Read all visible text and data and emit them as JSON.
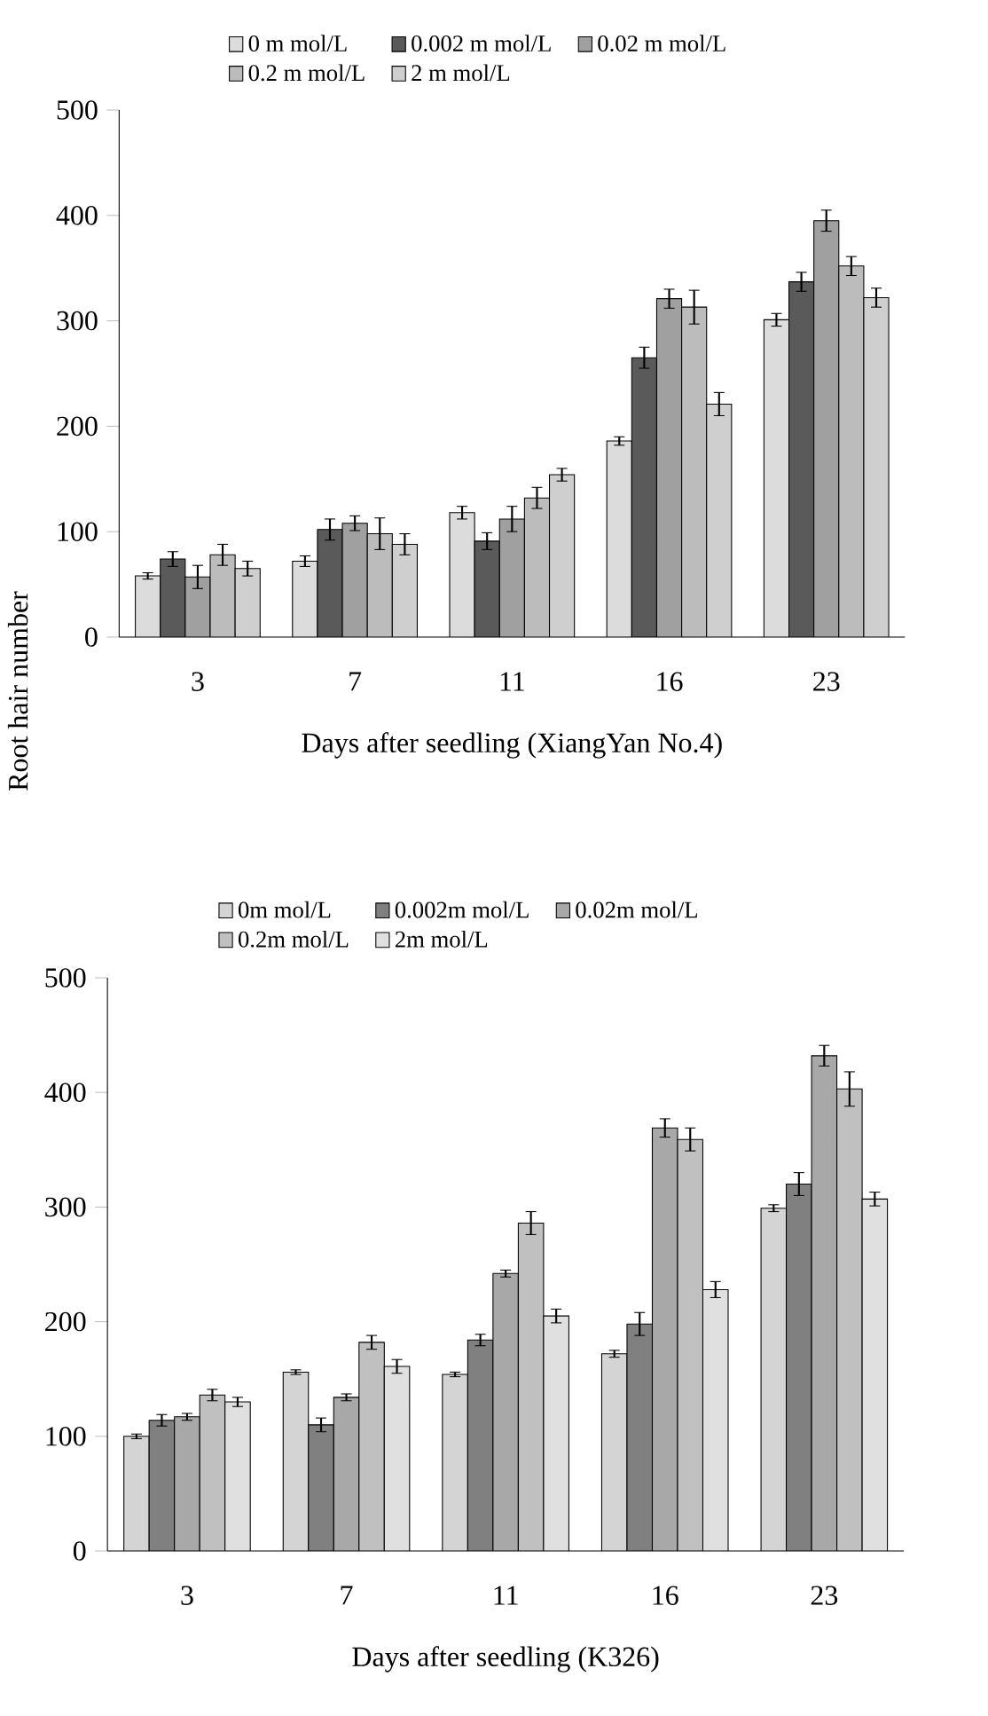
{
  "chart_data": [
    {
      "type": "bar",
      "xlabel": "Days after seedling (XiangYan No.4)",
      "categories": [
        "3",
        "7",
        "11",
        "16",
        "23"
      ],
      "ylim": [
        0,
        500
      ],
      "yticks": [
        0,
        100,
        200,
        300,
        400,
        500
      ],
      "legend": "top",
      "grid": false,
      "series": [
        {
          "name": "0 m mol/L",
          "color": "#dcdcdc",
          "values": [
            58,
            72,
            118,
            186,
            301
          ],
          "errors": [
            3,
            5,
            6,
            4,
            6
          ]
        },
        {
          "name": "0.002 m mol/L",
          "color": "#5a5a5a",
          "values": [
            74,
            102,
            91,
            265,
            337
          ],
          "errors": [
            7,
            10,
            8,
            10,
            9
          ]
        },
        {
          "name": "0.02 m mol/L",
          "color": "#a0a0a0",
          "values": [
            57,
            108,
            112,
            321,
            395
          ],
          "errors": [
            11,
            7,
            12,
            9,
            10
          ]
        },
        {
          "name": "0.2 m mol/L",
          "color": "#bcbcbc",
          "values": [
            78,
            98,
            132,
            313,
            352
          ],
          "errors": [
            10,
            15,
            10,
            16,
            9
          ]
        },
        {
          "name": "2 m mol/L",
          "color": "#cfcfcf",
          "values": [
            65,
            88,
            154,
            221,
            322
          ],
          "errors": [
            7,
            10,
            6,
            11,
            9
          ]
        }
      ]
    },
    {
      "type": "bar",
      "xlabel": "Days after seedling (K326)",
      "ylabel": "Root hair number",
      "categories": [
        "3",
        "7",
        "11",
        "16",
        "23"
      ],
      "ylim": [
        0,
        500
      ],
      "yticks": [
        0,
        100,
        200,
        300,
        400,
        500
      ],
      "legend": "top",
      "grid": false,
      "series": [
        {
          "name": "0m mol/L",
          "color": "#d4d4d4",
          "values": [
            100,
            156,
            154,
            172,
            299
          ],
          "errors": [
            2,
            2,
            2,
            3,
            3
          ]
        },
        {
          "name": "0.002m mol/L",
          "color": "#808080",
          "values": [
            114,
            110,
            184,
            198,
            320
          ],
          "errors": [
            5,
            6,
            5,
            10,
            10
          ]
        },
        {
          "name": "0.02m mol/L",
          "color": "#a8a8a8",
          "values": [
            117,
            134,
            242,
            369,
            432
          ],
          "errors": [
            3,
            3,
            3,
            8,
            9
          ]
        },
        {
          "name": "0.2m mol/L",
          "color": "#c0c0c0",
          "values": [
            136,
            182,
            286,
            359,
            403
          ],
          "errors": [
            5,
            6,
            10,
            10,
            15
          ]
        },
        {
          "name": "2m mol/L",
          "color": "#e0e0e0",
          "values": [
            130,
            161,
            205,
            228,
            307
          ],
          "errors": [
            4,
            6,
            6,
            7,
            6
          ]
        }
      ]
    }
  ]
}
